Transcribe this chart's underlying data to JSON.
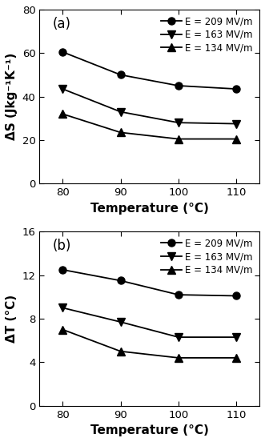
{
  "temperature": [
    80,
    90,
    100,
    110
  ],
  "panel_a": {
    "label": "(a)",
    "series": [
      {
        "label": "E = 209 MV/m",
        "marker": "o",
        "values": [
          60.5,
          50.0,
          45.0,
          43.5
        ]
      },
      {
        "label": "E = 163 MV/m",
        "marker": "v",
        "values": [
          43.5,
          33.0,
          28.0,
          27.5
        ]
      },
      {
        "label": "E = 134 MV/m",
        "marker": "^",
        "values": [
          32.0,
          23.5,
          20.5,
          20.5
        ]
      }
    ],
    "ylabel": "ΔS (Jkg⁻¹K⁻¹)",
    "xlabel": "Temperature (°C)",
    "ylim": [
      0,
      80
    ],
    "yticks": [
      0,
      20,
      40,
      60,
      80
    ],
    "xlim": [
      76,
      114
    ],
    "xticks": [
      80,
      90,
      100,
      110
    ]
  },
  "panel_b": {
    "label": "(b)",
    "series": [
      {
        "label": "E = 209 MV/m",
        "marker": "o",
        "values": [
          12.5,
          11.5,
          10.2,
          10.1
        ]
      },
      {
        "label": "E = 163 MV/m",
        "marker": "v",
        "values": [
          9.0,
          7.7,
          6.3,
          6.3
        ]
      },
      {
        "label": "E = 134 MV/m",
        "marker": "^",
        "values": [
          7.0,
          5.0,
          4.4,
          4.4
        ]
      }
    ],
    "ylabel": "ΔT (°C)",
    "xlabel": "Temperature (°C)",
    "ylim": [
      0,
      16
    ],
    "yticks": [
      0,
      4,
      8,
      12,
      16
    ],
    "xlim": [
      76,
      114
    ],
    "xticks": [
      80,
      90,
      100,
      110
    ]
  },
  "line_color": "#000000",
  "marker_size": 6.5,
  "linewidth": 1.3,
  "font_size_label": 11,
  "font_size_tick": 9.5,
  "font_size_legend": 8.5,
  "font_size_panel_label": 12
}
